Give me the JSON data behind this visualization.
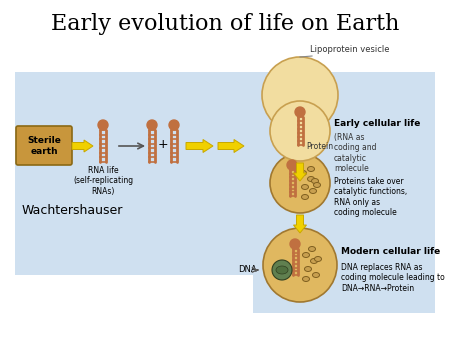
{
  "title": "Early evolution of life on Earth",
  "title_fontsize": 16,
  "bg_panel_color": "#cfe0f0",
  "sterile_earth_box_color": "#c8963c",
  "sterile_earth_text": "Sterile\nearth",
  "rna_life_text": "RNA life\n(self-replicating\nRNAs)",
  "wachtershauser_text": "Wachtershauser",
  "lipoprotein_label": "Lipoprotein vesicle",
  "early_cell_label": "Early cellular life",
  "early_cell_sub": "(RNA as\ncoding and\ncatalytic\nmolecule",
  "protein_label": "Protein",
  "protein_desc": "Proteins take over\ncatalytic functions,\nRNA only as\ncoding molecule",
  "modern_cell_label": "Modern cellular life",
  "modern_cell_desc": "DNA replaces RNA as\ncoding molecule leading to\nDNA→RNA→Protein",
  "dna_label": "DNA",
  "arrow_yellow": "#f0d000",
  "arrow_yellow_edge": "#c8a800",
  "vesicle_color": "#f2dda0",
  "vesicle_edge": "#c8a050",
  "cell1_color": "#f2dda0",
  "cell1_edge": "#c8a050",
  "cell2_color": "#e0b860",
  "cell2_edge": "#a07830",
  "cell3_color": "#e0b860",
  "cell3_edge": "#a07830",
  "rna_color": "#c07040",
  "protein_dot_color": "#c8a050",
  "protein_dot_edge": "#806020",
  "dna_cluster_color": "#608050",
  "dna_cluster_edge": "#304020"
}
